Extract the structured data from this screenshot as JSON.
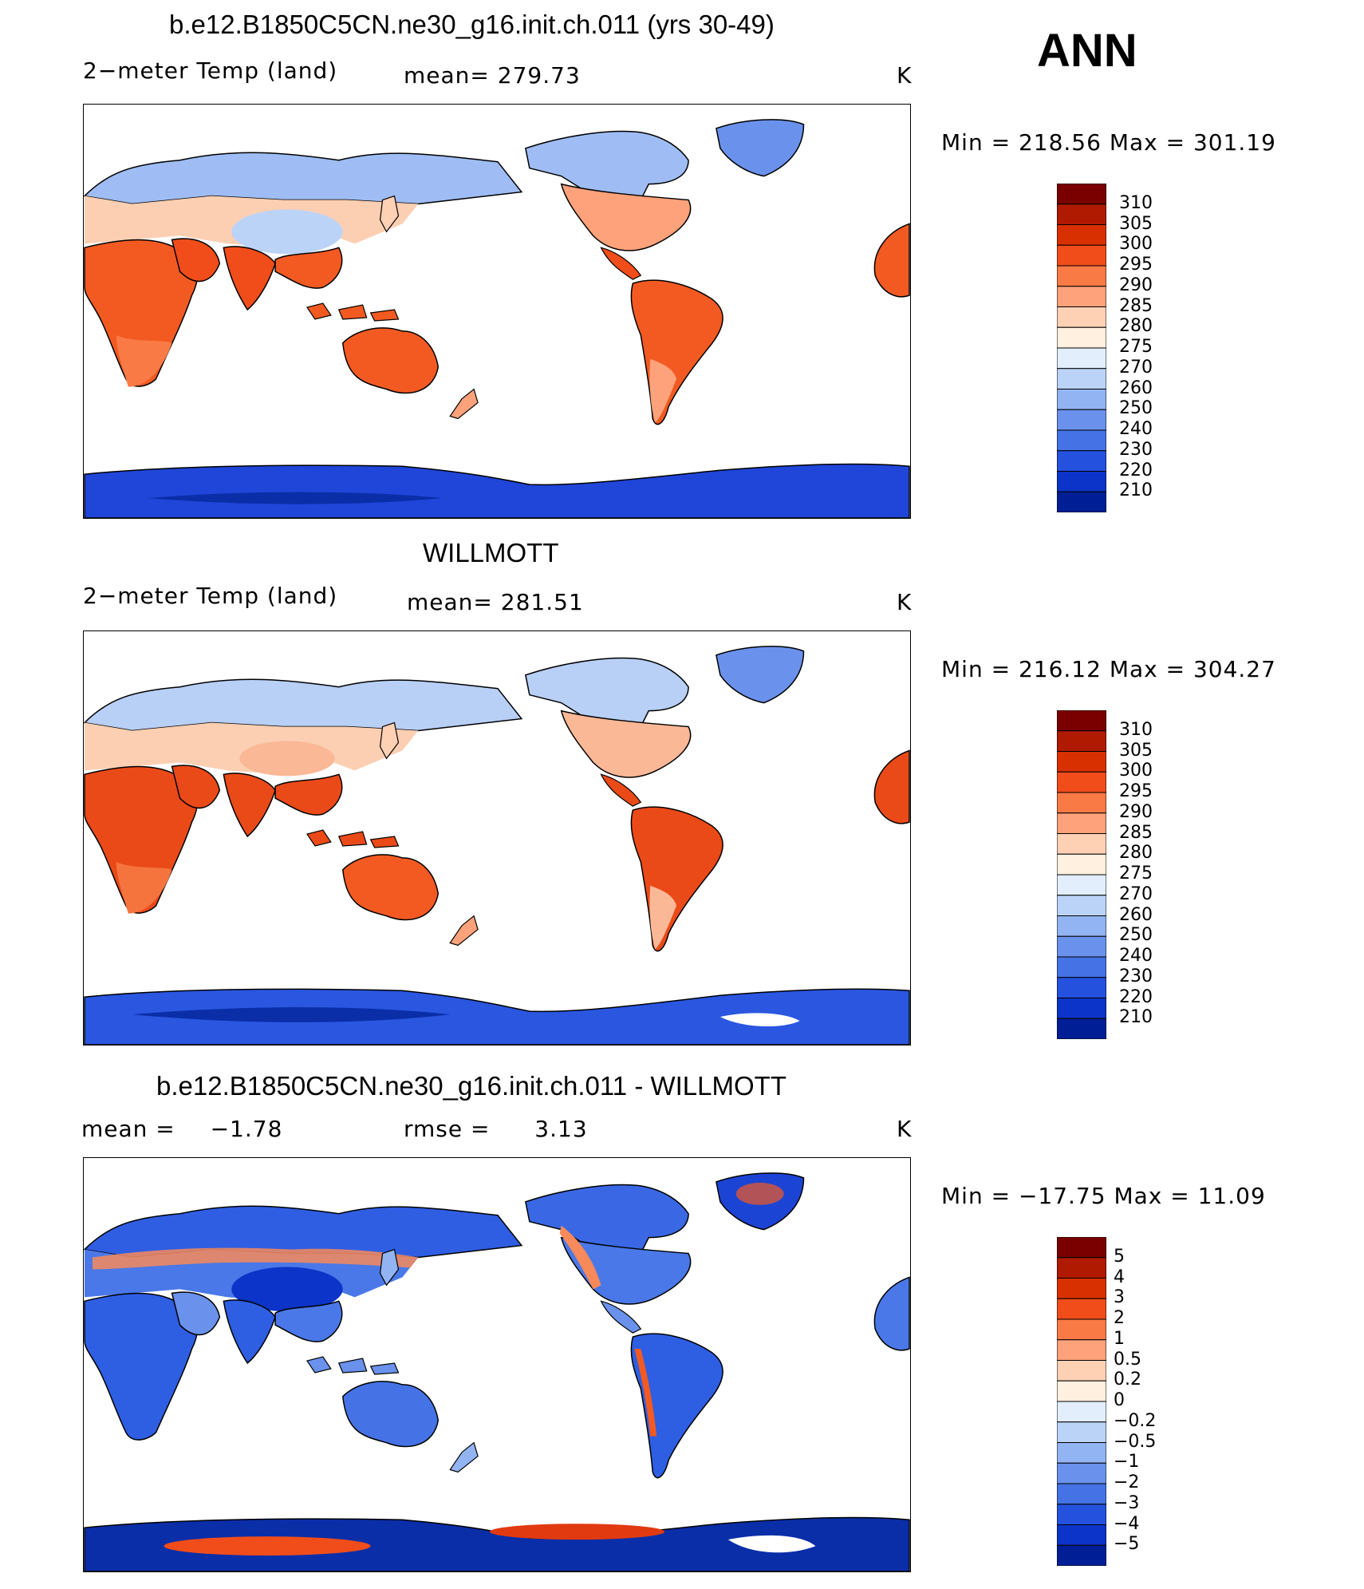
{
  "season": "ANN",
  "units": "K",
  "colors": {
    "temp_scale": [
      "#7a0000",
      "#b01a00",
      "#d93000",
      "#f04d1a",
      "#fa7a46",
      "#fda27a",
      "#fed0b4",
      "#fff0e0",
      "#e2eefc",
      "#bcd3f8",
      "#93b4f2",
      "#6a92ec",
      "#4573e6",
      "#2452de",
      "#0c34c8",
      "#001f96",
      "#00106a"
    ],
    "diff_scale": [
      "#7a0000",
      "#b01a00",
      "#d93000",
      "#f04d1a",
      "#fa7a46",
      "#fda27a",
      "#fed0b4",
      "#fff0e0",
      "#e2eefc",
      "#bcd3f8",
      "#93b4f2",
      "#6a92ec",
      "#4573e6",
      "#2452de",
      "#0c34c8",
      "#001f96",
      "#00106a"
    ]
  },
  "panels": [
    {
      "title": "b.e12.B1850C5CN.ne30_g16.init.ch.011 (yrs 30-49)",
      "variable": "2−meter Temp (land)",
      "mean_label": "mean=",
      "mean_value": "279.73",
      "units": "K",
      "minmax_text": "Min  =  218.56  Max  =  301.19",
      "levels": [
        "310",
        "305",
        "300",
        "295",
        "290",
        "285",
        "280",
        "275",
        "270",
        "260",
        "250",
        "240",
        "230",
        "220",
        "210"
      ]
    },
    {
      "title": "WILLMOTT",
      "variable": "2−meter Temp (land)",
      "mean_label": "mean=",
      "mean_value": "281.51",
      "units": "K",
      "minmax_text": "Min  =  216.12  Max  =  304.27",
      "levels": [
        "310",
        "305",
        "300",
        "295",
        "290",
        "285",
        "280",
        "275",
        "270",
        "260",
        "250",
        "240",
        "230",
        "220",
        "210"
      ]
    },
    {
      "title": "b.e12.B1850C5CN.ne30_g16.init.ch.011 - WILLMOTT",
      "mean_label": "mean  =",
      "mean_value": "−1.78",
      "rmse_label": "rmse  =",
      "rmse_value": "3.13",
      "units": "K",
      "minmax_text": "Min  =  −17.75  Max  =     11.09",
      "levels": [
        "5",
        "4",
        "3",
        "2",
        "1",
        "0.5",
        "0.2",
        "0",
        "−0.2",
        "−0.5",
        "−1",
        "−2",
        "−3",
        "−4",
        "−5"
      ]
    }
  ]
}
